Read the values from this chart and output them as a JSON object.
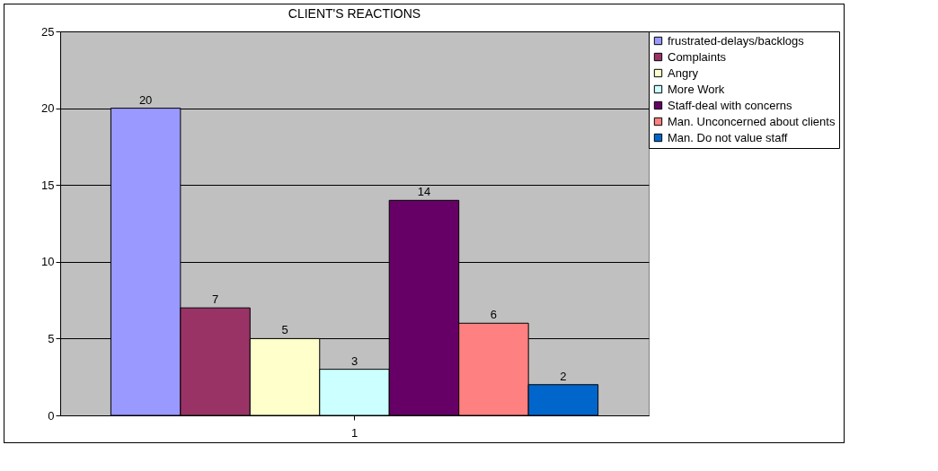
{
  "chart_data": {
    "type": "bar",
    "title": "CLIENT'S REACTIONS",
    "categories": [
      "1"
    ],
    "series": [
      {
        "name": "frustrated-delays/backlogs",
        "color": "#9999ff",
        "values": [
          20
        ]
      },
      {
        "name": "Complaints",
        "color": "#993366",
        "values": [
          7
        ]
      },
      {
        "name": "Angry",
        "color": "#ffffcc",
        "values": [
          5
        ]
      },
      {
        "name": "More Work",
        "color": "#ccffff",
        "values": [
          3
        ]
      },
      {
        "name": "Staff-deal with concerns",
        "color": "#660066",
        "values": [
          14
        ]
      },
      {
        "name": "Man. Unconcerned about clients",
        "color": "#ff8080",
        "values": [
          6
        ]
      },
      {
        "name": "Man. Do not value staff",
        "color": "#0066cc",
        "values": [
          2
        ]
      }
    ],
    "ylim": [
      0,
      25
    ],
    "yticks": [
      0,
      5,
      10,
      15,
      20,
      25
    ],
    "grid": "y",
    "legend": "right",
    "data_labels": true
  }
}
